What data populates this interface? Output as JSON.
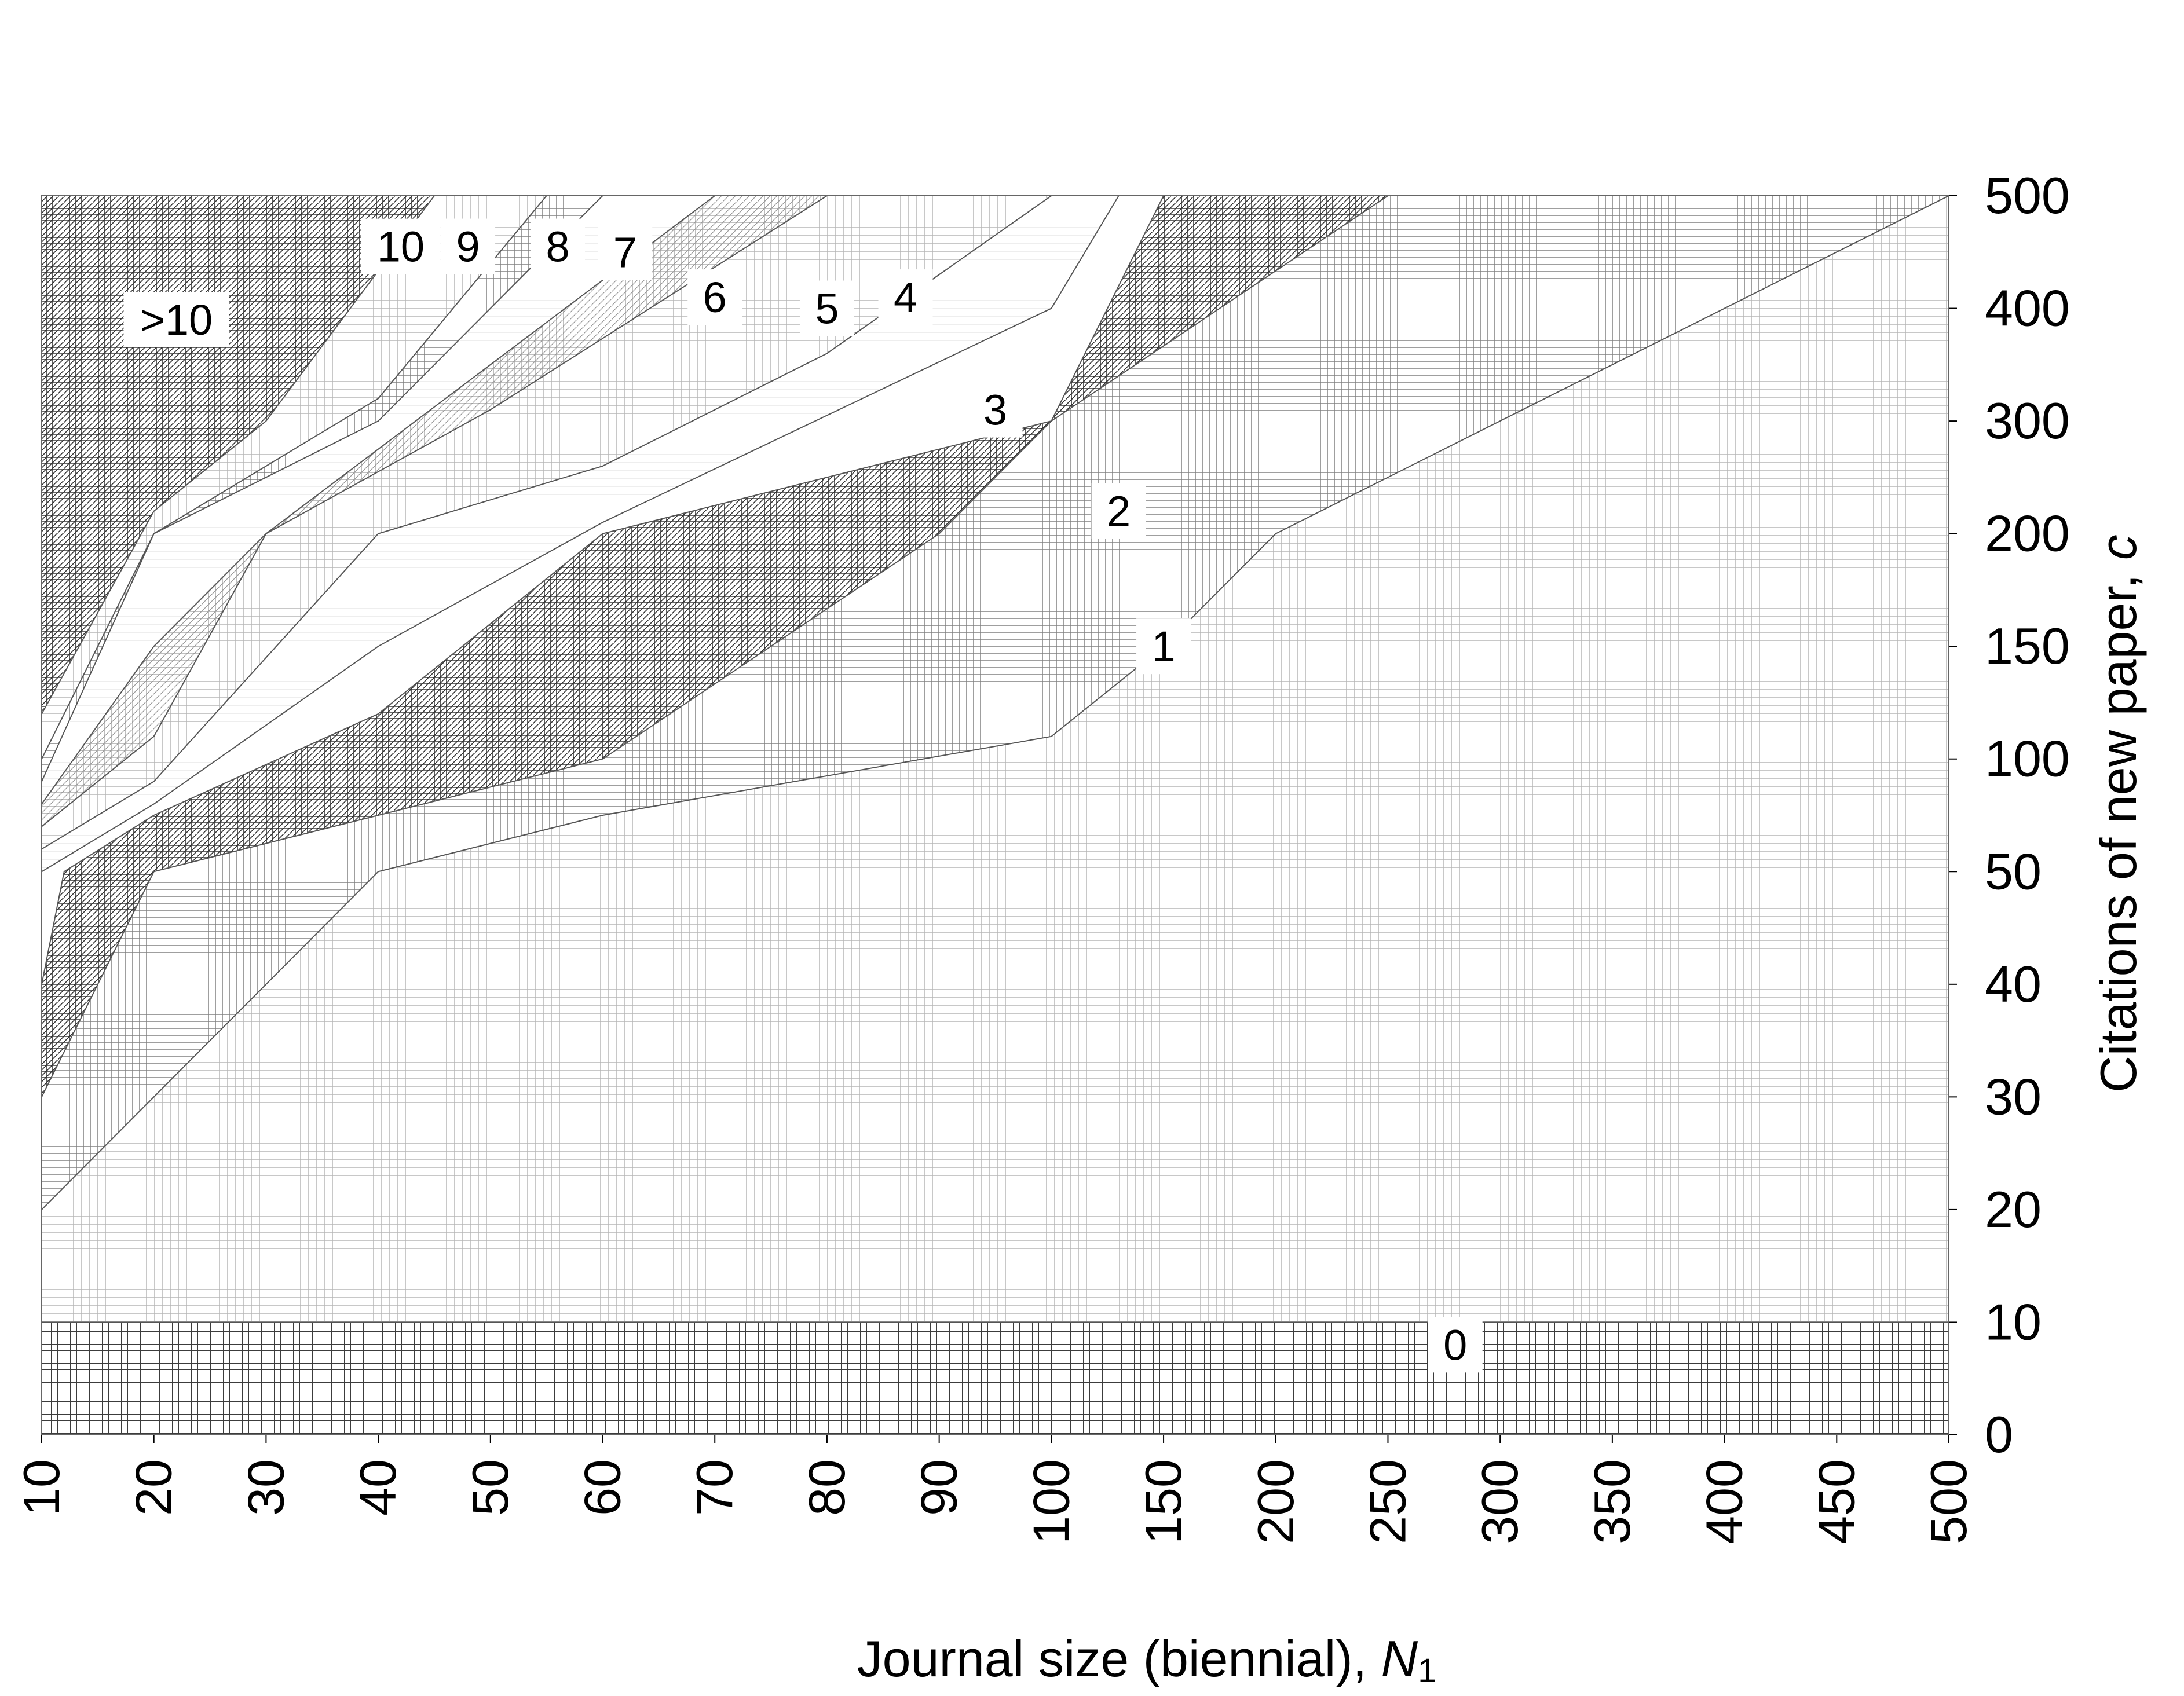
{
  "chart_data": {
    "type": "area",
    "xlabel": "Journal size (biennial), N1",
    "xlabel_main": "Journal size (biennial), ",
    "xlabel_var": "N",
    "xlabel_sub": "1",
    "ylabel": "Citations of new paper, c",
    "ylabel_main": "Citations of new paper, ",
    "ylabel_var": "c",
    "x_ticks": [
      "10",
      "20",
      "30",
      "40",
      "50",
      "60",
      "70",
      "80",
      "90",
      "100",
      "150",
      "200",
      "250",
      "300",
      "350",
      "400",
      "450",
      "500"
    ],
    "y_ticks": [
      "0",
      "10",
      "20",
      "30",
      "40",
      "50",
      "100",
      "150",
      "200",
      "300",
      "400",
      "500"
    ],
    "scale": "categorical (unevenly spaced tick values)",
    "grid": true,
    "zones": [
      {
        "label": "0"
      },
      {
        "label": "1"
      },
      {
        "label": "2"
      },
      {
        "label": "3"
      },
      {
        "label": "4"
      },
      {
        "label": "5"
      },
      {
        "label": "6"
      },
      {
        "label": "7"
      },
      {
        "label": "8"
      },
      {
        "label": "9"
      },
      {
        "label": "10"
      },
      {
        "label": ">10"
      }
    ],
    "boundaries": [
      {
        "between": "0-1",
        "points": [
          [
            10,
            10
          ],
          [
            500,
            10
          ]
        ]
      },
      {
        "between": "1-2",
        "points": [
          [
            10,
            20
          ],
          [
            20,
            30
          ],
          [
            40,
            50
          ],
          [
            60,
            75
          ],
          [
            100,
            110
          ],
          [
            150,
            150
          ],
          [
            200,
            200
          ],
          [
            500,
            500
          ]
        ]
      },
      {
        "between": "2-3",
        "points": [
          [
            10,
            30
          ],
          [
            20,
            50
          ],
          [
            40,
            75
          ],
          [
            60,
            100
          ],
          [
            90,
            200
          ],
          [
            100,
            300
          ],
          [
            250,
            500
          ]
        ]
      },
      {
        "between": "3-4",
        "points": [
          [
            10,
            40
          ],
          [
            12,
            50
          ],
          [
            20,
            75
          ],
          [
            40,
            120
          ],
          [
            60,
            200
          ],
          [
            80,
            250
          ],
          [
            100,
            300
          ],
          [
            150,
            500
          ]
        ]
      },
      {
        "between": "4-5",
        "points": [
          [
            10,
            50
          ],
          [
            20,
            80
          ],
          [
            40,
            150
          ],
          [
            60,
            210
          ],
          [
            100,
            400
          ],
          [
            130,
            500
          ]
        ]
      },
      {
        "between": "5-6",
        "points": [
          [
            10,
            60
          ],
          [
            20,
            90
          ],
          [
            40,
            200
          ],
          [
            60,
            260
          ],
          [
            80,
            360
          ],
          [
            100,
            500
          ]
        ]
      },
      {
        "between": "6-7",
        "points": [
          [
            10,
            70
          ],
          [
            20,
            110
          ],
          [
            30,
            200
          ],
          [
            50,
            310
          ],
          [
            80,
            500
          ]
        ]
      },
      {
        "between": "7-8",
        "points": [
          [
            10,
            80
          ],
          [
            20,
            150
          ],
          [
            30,
            200
          ],
          [
            50,
            350
          ],
          [
            70,
            500
          ]
        ]
      },
      {
        "between": "8-9",
        "points": [
          [
            10,
            90
          ],
          [
            20,
            200
          ],
          [
            40,
            300
          ],
          [
            60,
            500
          ]
        ]
      },
      {
        "between": "9-10",
        "points": [
          [
            10,
            100
          ],
          [
            20,
            200
          ],
          [
            40,
            320
          ],
          [
            55,
            500
          ]
        ]
      },
      {
        "between": "10->10",
        "points": [
          [
            10,
            120
          ],
          [
            20,
            220
          ],
          [
            30,
            300
          ],
          [
            45,
            500
          ]
        ]
      }
    ]
  }
}
